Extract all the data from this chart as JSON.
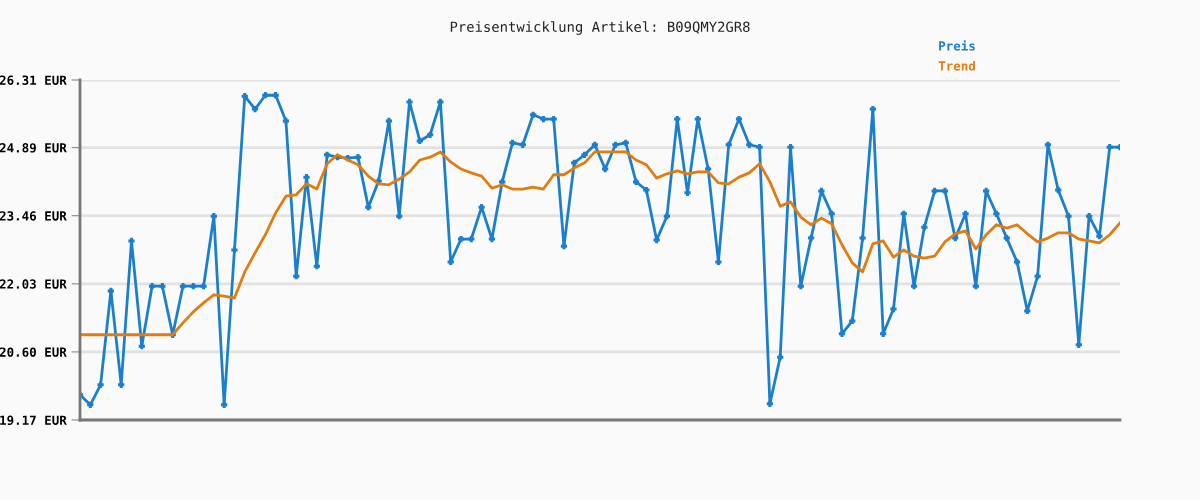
{
  "chart_data": {
    "type": "line",
    "title": "Preisentwicklung Artikel: B09QMY2GR8",
    "categories": [
      null,
      null,
      null,
      null,
      null,
      null,
      null,
      null,
      null,
      null,
      null,
      null,
      null,
      null,
      null,
      null,
      null,
      null,
      null,
      null,
      null,
      null,
      null,
      null,
      null,
      null,
      null,
      null,
      null,
      null,
      null,
      null,
      null,
      null,
      null,
      null,
      null,
      null,
      null,
      null,
      null,
      null,
      null,
      null,
      null,
      null,
      null,
      null,
      null,
      null,
      null,
      null,
      null,
      null,
      null,
      null,
      null,
      null,
      null,
      null,
      null,
      null,
      null,
      null,
      null,
      null,
      null,
      null,
      null,
      null,
      null,
      null,
      null,
      null,
      null,
      null,
      null,
      null,
      null,
      null,
      null,
      null,
      null,
      null,
      null,
      null,
      null,
      null,
      null,
      null,
      null,
      null,
      null,
      null,
      null,
      null,
      null,
      null,
      null,
      null,
      null,
      null
    ],
    "series": [
      {
        "name": "Preis",
        "color": "#1a7fcc",
        "marker": "cross",
        "values": [
          19.7,
          19.49,
          19.91,
          21.88,
          19.91,
          22.93,
          20.72,
          21.98,
          21.98,
          20.96,
          21.98,
          21.98,
          21.98,
          23.45,
          19.49,
          22.74,
          25.97,
          25.7,
          25.99,
          25.99,
          25.45,
          22.19,
          24.27,
          22.4,
          24.74,
          24.69,
          24.67,
          24.69,
          23.64,
          24.19,
          25.45,
          23.45,
          25.85,
          25.03,
          25.16,
          25.85,
          22.49,
          22.97,
          22.97,
          23.64,
          22.97,
          24.17,
          24.99,
          24.95,
          25.58,
          25.49,
          25.49,
          22.82,
          24.57,
          24.74,
          24.95,
          24.44,
          24.95,
          24.99,
          24.17,
          24.0,
          22.95,
          23.45,
          25.49,
          23.94,
          25.49,
          24.44,
          22.49,
          24.95,
          25.49,
          24.95,
          24.9,
          19.51,
          20.49,
          24.9,
          21.98,
          22.99,
          23.98,
          23.5,
          20.98,
          21.25,
          22.99,
          25.7,
          20.98,
          21.5,
          23.5,
          21.98,
          23.22,
          23.98,
          23.98,
          22.99,
          23.5,
          21.98,
          23.98,
          23.5,
          22.99,
          22.49,
          21.46,
          22.19,
          24.95,
          24.0,
          23.45,
          20.75,
          23.45,
          23.03,
          24.9,
          24.9
        ]
      },
      {
        "name": "Trend",
        "color": "#e07c10",
        "marker": "none",
        "values": [
          20.96,
          20.96,
          20.96,
          20.96,
          20.96,
          20.96,
          20.96,
          20.96,
          20.96,
          20.96,
          21.21,
          21.44,
          21.63,
          21.8,
          21.77,
          21.73,
          22.28,
          22.68,
          23.06,
          23.52,
          23.87,
          23.9,
          24.13,
          24.02,
          24.55,
          24.74,
          24.63,
          24.53,
          24.29,
          24.13,
          24.11,
          24.23,
          24.38,
          24.63,
          24.69,
          24.8,
          24.59,
          24.44,
          24.36,
          24.29,
          24.04,
          24.11,
          24.02,
          24.02,
          24.06,
          24.02,
          24.32,
          24.32,
          24.46,
          24.57,
          24.8,
          24.8,
          24.8,
          24.8,
          24.63,
          24.53,
          24.25,
          24.34,
          24.4,
          24.34,
          24.38,
          24.38,
          24.15,
          24.13,
          24.27,
          24.36,
          24.55,
          24.17,
          23.66,
          23.75,
          23.43,
          23.27,
          23.41,
          23.29,
          22.85,
          22.47,
          22.28,
          22.87,
          22.93,
          22.59,
          22.74,
          22.61,
          22.57,
          22.61,
          22.91,
          23.08,
          23.14,
          22.76,
          23.06,
          23.27,
          23.2,
          23.27,
          23.08,
          22.91,
          22.99,
          23.1,
          23.1,
          22.97,
          22.93,
          22.89,
          23.06,
          23.31
        ]
      }
    ],
    "ylim": [
      19.17,
      26.31
    ],
    "yticks": [
      {
        "value": 19.17,
        "label": "19.17 EUR"
      },
      {
        "value": 20.6,
        "label": "20.60 EUR"
      },
      {
        "value": 22.03,
        "label": "22.03 EUR"
      },
      {
        "value": 23.46,
        "label": "23.46 EUR"
      },
      {
        "value": 24.89,
        "label": "24.89 EUR"
      },
      {
        "value": 26.31,
        "label": "26.31 EUR"
      }
    ],
    "grid": "y",
    "legend": "top right",
    "tick_labels": "y"
  }
}
